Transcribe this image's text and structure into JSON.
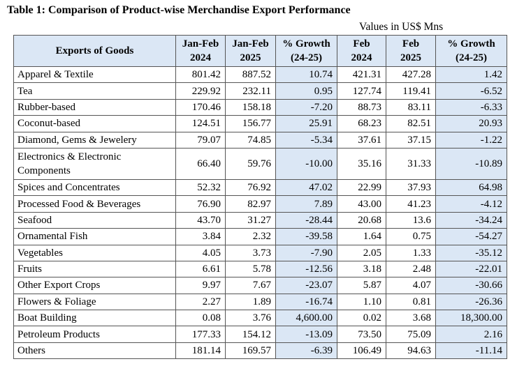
{
  "title": "Table 1: Comparison of Product-wise Merchandise Export Performance",
  "units": "Values in US$ Mns",
  "header": {
    "col0": "Exports of Goods",
    "col1_l1": "Jan-Feb",
    "col1_l2": "2024",
    "col2_l1": "Jan-Feb",
    "col2_l2": "2025",
    "col3_l1": "% Growth",
    "col3_l2": "(24-25)",
    "col4_l1": "Feb",
    "col4_l2": "2024",
    "col5_l1": "Feb",
    "col5_l2": "2025",
    "col6_l1": "% Growth",
    "col6_l2": "(24-25)"
  },
  "rows": [
    [
      "Apparel & Textile",
      "801.42",
      "887.52",
      "10.74",
      "421.31",
      "427.28",
      "1.42"
    ],
    [
      "Tea",
      "229.92",
      "232.11",
      "0.95",
      "127.74",
      "119.41",
      "-6.52"
    ],
    [
      "Rubber-based",
      "170.46",
      "158.18",
      "-7.20",
      "88.73",
      "83.11",
      "-6.33"
    ],
    [
      "Coconut-based",
      "124.51",
      "156.77",
      "25.91",
      "68.23",
      "82.51",
      "20.93"
    ],
    [
      "Diamond, Gems & Jewelery",
      "79.07",
      "74.85",
      "-5.34",
      "37.61",
      "37.15",
      "-1.22"
    ],
    [
      "Electronics & Electronic Components",
      "66.40",
      "59.76",
      "-10.00",
      "35.16",
      "31.33",
      "-10.89"
    ],
    [
      "Spices and Concentrates",
      "52.32",
      "76.92",
      "47.02",
      "22.99",
      "37.93",
      "64.98"
    ],
    [
      "Processed Food & Beverages",
      "76.90",
      "82.97",
      "7.89",
      "43.00",
      "41.23",
      "-4.12"
    ],
    [
      "Seafood",
      "43.70",
      "31.27",
      "-28.44",
      "20.68",
      "13.6",
      "-34.24"
    ],
    [
      "Ornamental Fish",
      "3.84",
      "2.32",
      "-39.58",
      "1.64",
      "0.75",
      "-54.27"
    ],
    [
      "Vegetables",
      "4.05",
      "3.73",
      "-7.90",
      "2.05",
      "1.33",
      "-35.12"
    ],
    [
      "Fruits",
      "6.61",
      "5.78",
      "-12.56",
      "3.18",
      "2.48",
      "-22.01"
    ],
    [
      "Other Export Crops",
      "9.97",
      "7.67",
      "-23.07",
      "5.87",
      "4.07",
      "-30.66"
    ],
    [
      "Flowers & Foliage",
      "2.27",
      "1.89",
      "-16.74",
      "1.10",
      "0.81",
      "-26.36"
    ],
    [
      "Boat Building",
      "0.08",
      "3.76",
      "4,600.00",
      "0.02",
      "3.68",
      "18,300.00"
    ],
    [
      "Petroleum Products",
      "177.33",
      "154.12",
      "-13.09",
      "73.50",
      "75.09",
      "2.16"
    ],
    [
      "Others",
      "181.14",
      "169.57",
      "-6.39",
      "106.49",
      "94.63",
      "-11.14"
    ]
  ]
}
